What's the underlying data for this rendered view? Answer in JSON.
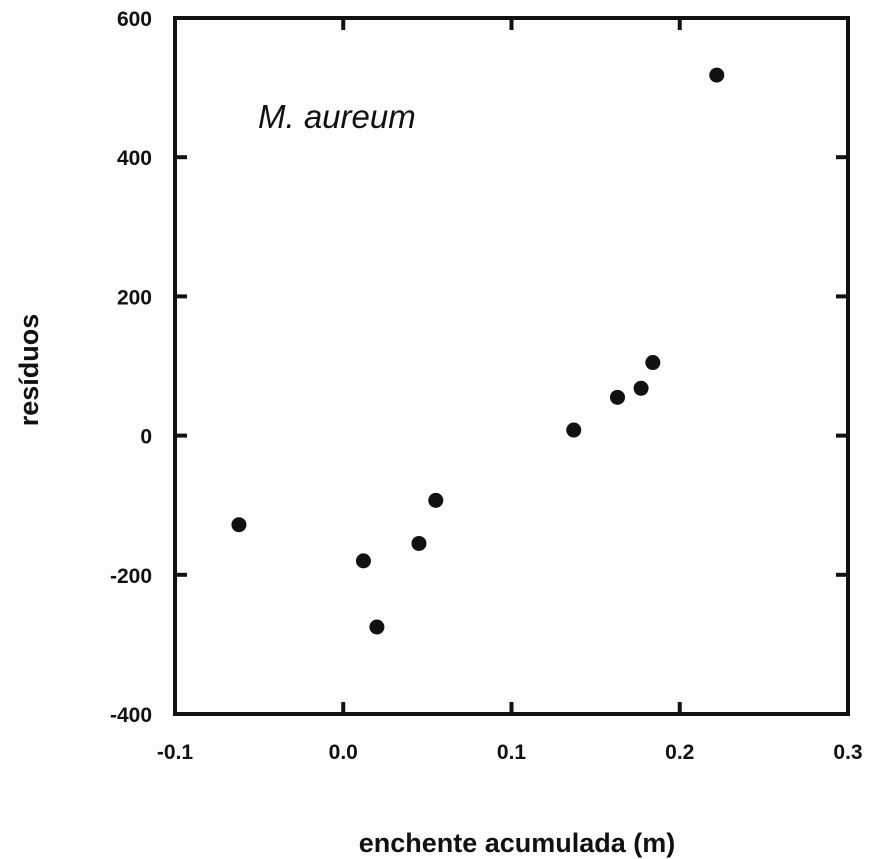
{
  "chart_data": {
    "type": "scatter",
    "title": "",
    "annotation": "M. aureum",
    "xlabel": "enchente acumulada (m)",
    "ylabel": "resíduos",
    "xlim": [
      -0.1,
      0.3
    ],
    "ylim": [
      -400,
      600
    ],
    "xticks": [
      -0.1,
      0.0,
      0.1,
      0.2,
      0.3
    ],
    "xtick_labels": [
      "-0.1",
      "0.0",
      "0.1",
      "0.2",
      "0.3"
    ],
    "yticks": [
      -400,
      -200,
      0,
      200,
      400,
      600
    ],
    "ytick_labels": [
      "-400",
      "-200",
      "0",
      "200",
      "400",
      "600"
    ],
    "grid": false,
    "series": [
      {
        "marker_color": "#111111",
        "points": [
          {
            "x": -0.062,
            "y": -128
          },
          {
            "x": 0.012,
            "y": -180
          },
          {
            "x": 0.02,
            "y": -275
          },
          {
            "x": 0.045,
            "y": -155
          },
          {
            "x": 0.055,
            "y": -93
          },
          {
            "x": 0.137,
            "y": 8
          },
          {
            "x": 0.163,
            "y": 55
          },
          {
            "x": 0.177,
            "y": 68
          },
          {
            "x": 0.184,
            "y": 105
          },
          {
            "x": 0.222,
            "y": 518
          }
        ]
      }
    ]
  }
}
